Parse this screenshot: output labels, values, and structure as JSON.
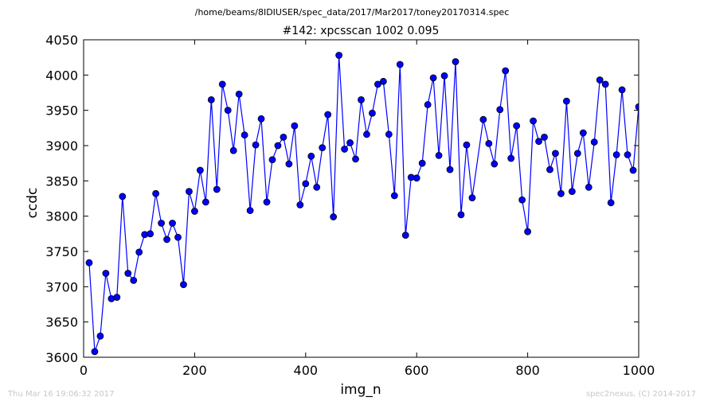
{
  "header": {
    "suptitle": "/home/beams/8IDIUSER/spec_data/2017/Mar2017/toney20170314.spec",
    "title": "#142: xpcsscan 1002 0.095"
  },
  "footer": {
    "timestamp": "Thu Mar 16 19:06:32 2017",
    "credit": "spec2nexus, (C) 2014-2017"
  },
  "chart_data": {
    "type": "line",
    "xlabel": "img_n",
    "ylabel": "ccdc",
    "xlim": [
      0,
      1000
    ],
    "ylim": [
      3600,
      4050
    ],
    "xticks": [
      0,
      200,
      400,
      600,
      800,
      1000
    ],
    "yticks": [
      3600,
      3650,
      3700,
      3750,
      3800,
      3850,
      3900,
      3950,
      4000,
      4050
    ],
    "grid": false,
    "line_color": "#0000ff",
    "marker_color": "#0000ff",
    "series": [
      {
        "x": [
          10,
          20,
          30,
          40,
          50,
          60,
          70,
          80,
          90,
          100,
          110,
          120,
          130,
          140,
          150,
          160,
          170,
          180,
          190,
          200,
          210,
          220,
          230,
          240,
          250,
          260,
          270,
          280,
          290,
          300,
          310,
          320,
          330,
          340,
          350,
          360,
          370,
          380,
          390,
          400,
          410,
          420,
          430,
          440,
          450,
          460,
          470,
          480,
          490,
          500,
          510,
          520,
          530,
          540,
          550,
          560,
          570,
          580,
          590,
          600,
          610,
          620,
          630,
          640,
          650,
          660,
          670,
          680,
          690,
          700,
          720,
          730,
          740,
          750,
          760,
          770,
          780,
          790,
          800,
          810,
          820,
          830,
          840,
          850,
          860,
          870,
          880,
          890,
          900,
          910,
          920,
          930,
          940,
          950,
          960,
          970,
          980,
          990,
          1000
        ],
        "y": [
          3734,
          3608,
          3630,
          3719,
          3683,
          3685,
          3828,
          3719,
          3709,
          3749,
          3774,
          3775,
          3832,
          3790,
          3767,
          3790,
          3770,
          3703,
          3835,
          3807,
          3865,
          3820,
          3965,
          3838,
          3987,
          3950,
          3893,
          3973,
          3915,
          3808,
          3901,
          3938,
          3820,
          3880,
          3900,
          3912,
          3874,
          3928,
          3816,
          3846,
          3885,
          3841,
          3897,
          3944,
          3799,
          4028,
          3895,
          3904,
          3881,
          3965,
          3916,
          3946,
          3987,
          3991,
          3916,
          3829,
          4015,
          3773,
          3855,
          3854,
          3875,
          3958,
          3996,
          3886,
          3999,
          3866,
          4019,
          3802,
          3901,
          3826,
          3937,
          3903,
          3874,
          3951,
          4006,
          3882,
          3928,
          3823,
          3778,
          3935,
          3906,
          3912,
          3866,
          3889,
          3832,
          3963,
          3835,
          3889,
          3918,
          3841,
          3905,
          3993,
          3987,
          3819,
          3887,
          3979,
          3887,
          3865,
          3955
        ]
      }
    ]
  }
}
